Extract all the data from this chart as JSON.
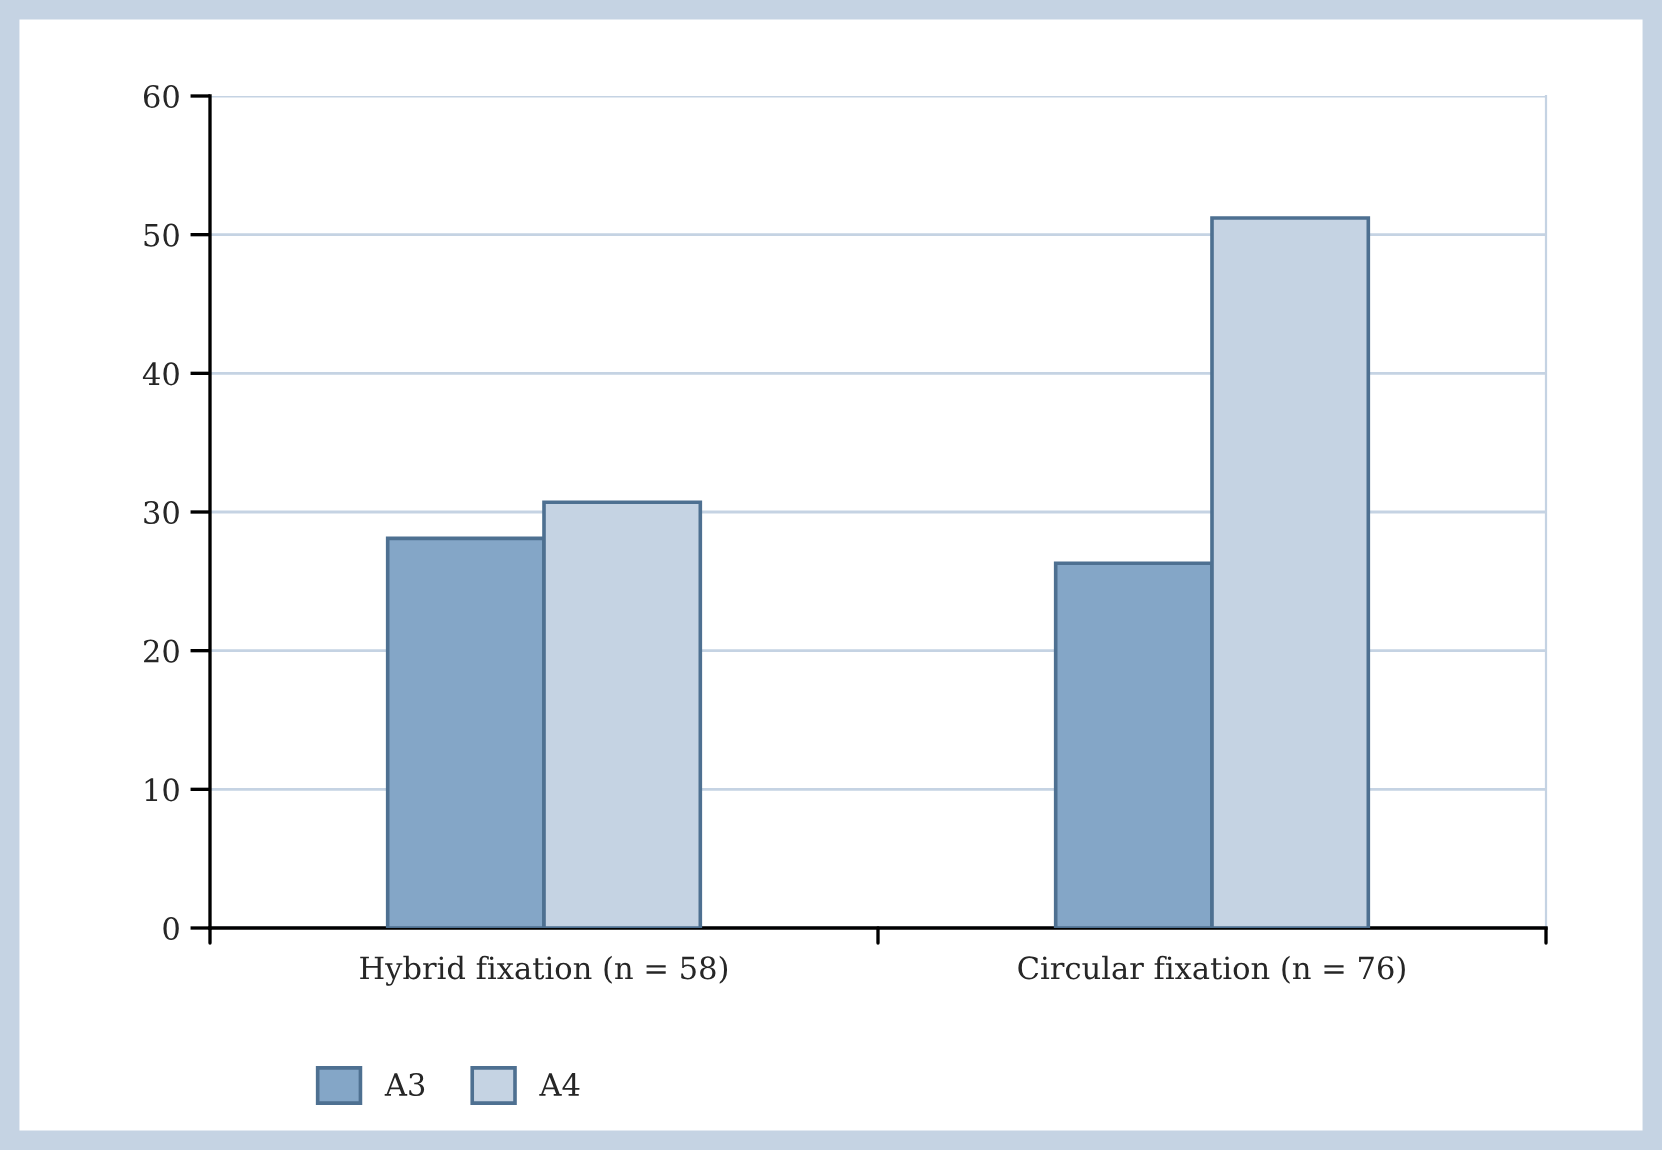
{
  "chart_data": {
    "type": "bar",
    "categories": [
      "Hybrid fixation (n = 58)",
      "Circular fixation (n = 76)"
    ],
    "series": [
      {
        "name": "A3",
        "color": "#84a6c7",
        "values": [
          28.1,
          26.3
        ]
      },
      {
        "name": "A4",
        "color": "#c5d3e3",
        "values": [
          30.7,
          51.2
        ]
      }
    ],
    "ylim": [
      0,
      60
    ],
    "yticks": [
      0,
      10,
      20,
      30,
      40,
      50,
      60
    ],
    "grid": "y",
    "legend": "bottom"
  }
}
